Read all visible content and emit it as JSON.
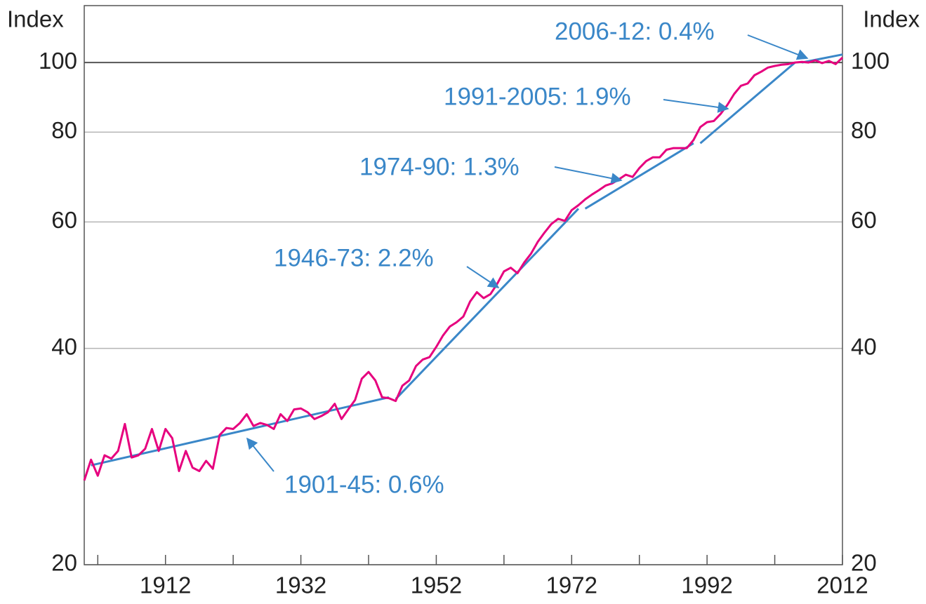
{
  "chart_data": {
    "type": "line",
    "y_label": "Index",
    "y2_label": "Index",
    "log_y": true,
    "grid": true,
    "xlim": [
      1900,
      2012
    ],
    "xticks": [
      1912,
      1932,
      1952,
      1972,
      1992,
      2012
    ],
    "x_minor_ticks": [
      1902,
      1922,
      1942,
      1962,
      1982,
      2002
    ],
    "ylim": [
      20,
      120
    ],
    "yticks": [
      20,
      40,
      60,
      80,
      100
    ],
    "y2lim": [
      20,
      120
    ],
    "y2ticks": [
      20,
      40,
      60,
      80,
      100
    ],
    "x": [
      1900,
      1901,
      1902,
      1903,
      1904,
      1905,
      1906,
      1907,
      1908,
      1909,
      1910,
      1911,
      1912,
      1913,
      1914,
      1915,
      1916,
      1917,
      1918,
      1919,
      1920,
      1921,
      1922,
      1923,
      1924,
      1925,
      1926,
      1927,
      1928,
      1929,
      1930,
      1931,
      1932,
      1933,
      1934,
      1935,
      1936,
      1937,
      1938,
      1939,
      1940,
      1941,
      1942,
      1943,
      1944,
      1945,
      1946,
      1947,
      1948,
      1949,
      1950,
      1951,
      1952,
      1953,
      1954,
      1955,
      1956,
      1957,
      1958,
      1959,
      1960,
      1961,
      1962,
      1963,
      1964,
      1965,
      1966,
      1967,
      1968,
      1969,
      1970,
      1971,
      1972,
      1973,
      1974,
      1975,
      1976,
      1977,
      1978,
      1979,
      1980,
      1981,
      1982,
      1983,
      1984,
      1985,
      1986,
      1987,
      1988,
      1989,
      1990,
      1991,
      1992,
      1993,
      1994,
      1995,
      1996,
      1997,
      1998,
      1999,
      2000,
      2001,
      2002,
      2003,
      2004,
      2005,
      2006,
      2007,
      2008,
      2009,
      2010,
      2011,
      2012
    ],
    "series": [
      {
        "color": "#e6007e",
        "values": [
          26.2,
          28.0,
          26.6,
          28.4,
          28.1,
          28.8,
          31.4,
          28.2,
          28.4,
          29.0,
          30.9,
          28.8,
          30.9,
          30.0,
          27.0,
          28.8,
          27.3,
          27.0,
          27.9,
          27.2,
          30.3,
          31.0,
          30.9,
          31.5,
          32.4,
          31.2,
          31.5,
          31.3,
          30.9,
          32.4,
          31.7,
          32.9,
          33.0,
          32.6,
          31.9,
          32.2,
          32.6,
          33.5,
          31.9,
          32.9,
          33.9,
          36.3,
          37.1,
          36.1,
          34.2,
          34.1,
          33.8,
          35.5,
          36.1,
          37.8,
          38.6,
          38.9,
          40.2,
          41.7,
          42.9,
          43.5,
          44.3,
          46.5,
          47.9,
          47.0,
          47.6,
          49.2,
          51.2,
          51.8,
          50.9,
          52.7,
          54.2,
          56.3,
          58.0,
          59.6,
          60.6,
          60.2,
          62.3,
          63.3,
          64.5,
          65.5,
          66.4,
          67.4,
          67.9,
          68.8,
          69.8,
          69.3,
          71.3,
          72.9,
          73.8,
          73.8,
          75.6,
          76.0,
          76.0,
          76.0,
          78.0,
          81.3,
          82.6,
          82.9,
          84.8,
          87.3,
          90.4,
          92.8,
          93.5,
          96.0,
          97.1,
          98.4,
          98.9,
          99.3,
          99.5,
          100,
          100.2,
          100,
          100.7,
          99.8,
          100.5,
          99.5,
          101.6
        ]
      }
    ],
    "trend_color": "#3a87c8",
    "trend_lines": [
      {
        "x": [
          1901,
          1945
        ],
        "values": [
          27.5,
          34.2
        ]
      },
      {
        "x": [
          1946,
          1973
        ],
        "values": [
          34.0,
          62.6
        ]
      },
      {
        "x": [
          1974,
          1990
        ],
        "values": [
          62.6,
          77.2
        ]
      },
      {
        "x": [
          1991,
          2005
        ],
        "values": [
          77.2,
          100
        ]
      },
      {
        "x": [
          2006,
          2012
        ],
        "values": [
          100,
          102.6
        ]
      }
    ],
    "annotations": [
      "1901-45: 0.6%",
      "1946-73: 2.2%",
      "1974-90: 1.3%",
      "1991-2005: 1.9%",
      "2006-12: 0.4%"
    ]
  }
}
